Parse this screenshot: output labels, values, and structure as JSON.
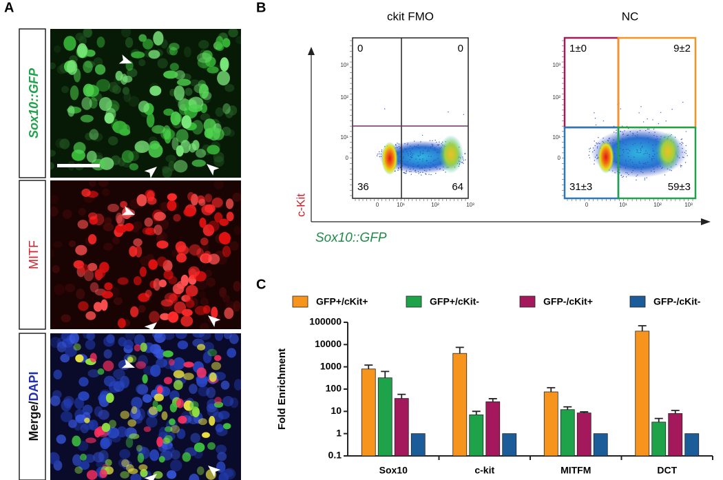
{
  "panels": {
    "a": {
      "label": "A",
      "images": [
        {
          "label": "Sox10::GFP"
        },
        {
          "label": "MITF"
        },
        {
          "label_parts": [
            "Merge/",
            "DAPI"
          ]
        }
      ]
    },
    "b": {
      "label": "B",
      "y_axis_label": "c-Kit",
      "x_axis_label": "Sox10::GFP",
      "y_ticks": [
        "10³",
        "10²",
        "10¹",
        "0"
      ],
      "x_ticks": [
        "0",
        "10¹",
        "10²",
        "10³"
      ],
      "plots": [
        {
          "title": "ckit FMO",
          "quadrants": [
            "0",
            "0",
            "36",
            "64"
          ]
        },
        {
          "title": "NC",
          "quadrants": [
            "1±0",
            "9±2",
            "31±3",
            "59±3"
          ]
        }
      ]
    },
    "c": {
      "label": "C"
    }
  },
  "chart_data": {
    "type": "bar",
    "y_label": "Fold Enrichment",
    "log_scale": true,
    "categories": [
      "Sox10",
      "c-kit",
      "MITFM",
      "DCT"
    ],
    "ylim": [
      0.1,
      100000
    ],
    "yticks": [
      0.1,
      1,
      10,
      100,
      1000,
      10000,
      100000
    ],
    "legend": "top",
    "series": [
      {
        "name": "GFP+/cKit+",
        "color": "#f7941d",
        "values": [
          800,
          4000,
          75,
          40000
        ],
        "errors": [
          400,
          3500,
          40,
          30000
        ]
      },
      {
        "name": "GFP+/cKit-",
        "color": "#1fa34a",
        "values": [
          320,
          7,
          12,
          3.3
        ],
        "errors": [
          300,
          3,
          4,
          1.5
        ]
      },
      {
        "name": "GFP-/cKit+",
        "color": "#a3195b",
        "values": [
          38,
          27,
          8.5,
          8
        ],
        "errors": [
          20,
          10,
          1,
          3
        ]
      },
      {
        "name": "GFP-/cKit-",
        "color": "#1c5d99",
        "values": [
          1,
          1,
          1,
          1
        ],
        "errors": [
          0,
          0,
          0,
          0
        ]
      }
    ]
  }
}
